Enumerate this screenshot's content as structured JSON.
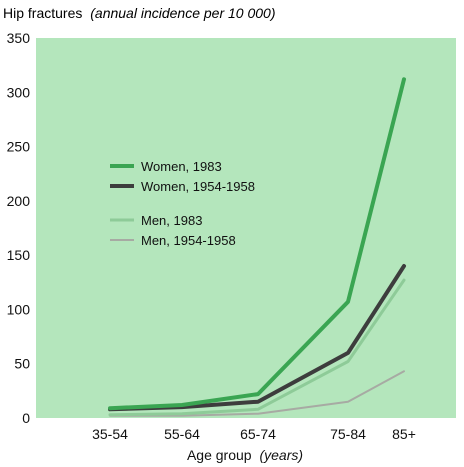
{
  "chart_data": {
    "type": "line",
    "title": "Hip fractures",
    "subtitle": "(annual incidence per 10 000)",
    "xlabel": "Age group",
    "xlabel_unit": "(years)",
    "ylabel": "",
    "categories": [
      "35-54",
      "55-64",
      "65-74",
      "75-84",
      "85+"
    ],
    "yticks": [
      0,
      50,
      100,
      150,
      200,
      250,
      300,
      350
    ],
    "ylim": [
      0,
      350
    ],
    "grid": false,
    "legend_position": "left-middle",
    "background_color": "#b4e6bc",
    "series": [
      {
        "name": "Women, 1983",
        "values": [
          9,
          12,
          22,
          107,
          312
        ],
        "color": "#3aa552",
        "width": 4
      },
      {
        "name": "Women, 1954-1958",
        "values": [
          8,
          10,
          15,
          60,
          140
        ],
        "color": "#3d3d3d",
        "width": 4
      },
      {
        "name": "Men, 1983",
        "values": [
          3,
          4,
          8,
          52,
          127
        ],
        "color": "#8ecb98",
        "width": 3
      },
      {
        "name": "Men, 1954-1958",
        "values": [
          2,
          2,
          4,
          15,
          43
        ],
        "color": "#a7aaa3",
        "width": 2
      }
    ]
  }
}
